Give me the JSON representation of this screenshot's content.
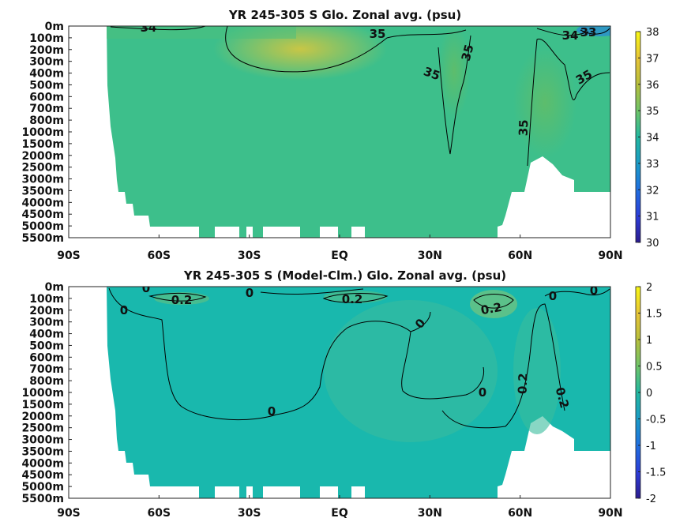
{
  "chart_data": [
    {
      "type": "heatmap",
      "title": "YR 245-305 S Glo. Zonal avg. (psu)",
      "x_ticks": [
        "90S",
        "60S",
        "30S",
        "EQ",
        "30N",
        "60N",
        "90N"
      ],
      "x_values": [
        -90,
        -60,
        -30,
        0,
        30,
        60,
        90
      ],
      "y_ticks": [
        "0m",
        "100m",
        "200m",
        "300m",
        "400m",
        "500m",
        "600m",
        "700m",
        "800m",
        "1000m",
        "1500m",
        "2000m",
        "2500m",
        "3000m",
        "3500m",
        "4000m",
        "4500m",
        "5000m",
        "5500m"
      ],
      "colorbar": {
        "min": 30,
        "max": 38,
        "ticks": [
          "30",
          "31",
          "32",
          "33",
          "34",
          "35",
          "36",
          "37",
          "38"
        ]
      },
      "contour_labels": [
        {
          "text": "34",
          "lat": -68,
          "depth": "0m"
        },
        {
          "text": "35",
          "lat": 12,
          "depth": "100m"
        },
        {
          "text": "35",
          "lat": 26,
          "depth": "400m"
        },
        {
          "text": "35",
          "lat": 36,
          "depth": "200m"
        },
        {
          "text": "35",
          "lat": 62,
          "depth": "1000m"
        },
        {
          "text": "35",
          "lat": 84,
          "depth": "500m"
        },
        {
          "text": "34",
          "lat": 79,
          "depth": "100m"
        },
        {
          "text": "33",
          "lat": 85,
          "depth": "100m"
        }
      ]
    },
    {
      "type": "heatmap",
      "title": "YR 245-305 S (Model-Clm.) Glo. Zonal avg. (psu)",
      "x_ticks": [
        "90S",
        "60S",
        "30S",
        "EQ",
        "30N",
        "60N",
        "90N"
      ],
      "x_values": [
        -90,
        -60,
        -30,
        0,
        30,
        60,
        90
      ],
      "y_ticks": [
        "0m",
        "100m",
        "200m",
        "300m",
        "400m",
        "500m",
        "600m",
        "700m",
        "800m",
        "1000m",
        "1500m",
        "2000m",
        "2500m",
        "3000m",
        "3500m",
        "4000m",
        "4500m",
        "5000m",
        "5500m"
      ],
      "colorbar": {
        "min": -2,
        "max": 2,
        "ticks": [
          "-2",
          "-1.5",
          "-1",
          "-0.5",
          "0",
          "0.5",
          "1",
          "1.5",
          "2"
        ]
      },
      "contour_labels": [
        {
          "text": "0",
          "lat": -63,
          "depth": "0m"
        },
        {
          "text": "0.2",
          "lat": -55,
          "depth": "100m"
        },
        {
          "text": "0",
          "lat": -28,
          "depth": "0m"
        },
        {
          "text": "0",
          "lat": -72,
          "depth": "200m"
        },
        {
          "text": "0.2",
          "lat": 3,
          "depth": "100m"
        },
        {
          "text": "0.2",
          "lat": 47,
          "depth": "200m"
        },
        {
          "text": "0",
          "lat": 67,
          "depth": "100m"
        },
        {
          "text": "0",
          "lat": 83,
          "depth": "0m"
        },
        {
          "text": "0",
          "lat": 25,
          "depth": "300m"
        },
        {
          "text": "0",
          "lat": -23,
          "depth": "2000m"
        },
        {
          "text": "0",
          "lat": 46,
          "depth": "1500m"
        },
        {
          "text": "0.2",
          "lat": 60,
          "depth": "1000m"
        },
        {
          "text": "0.2",
          "lat": 66,
          "depth": "2000m"
        }
      ]
    }
  ]
}
